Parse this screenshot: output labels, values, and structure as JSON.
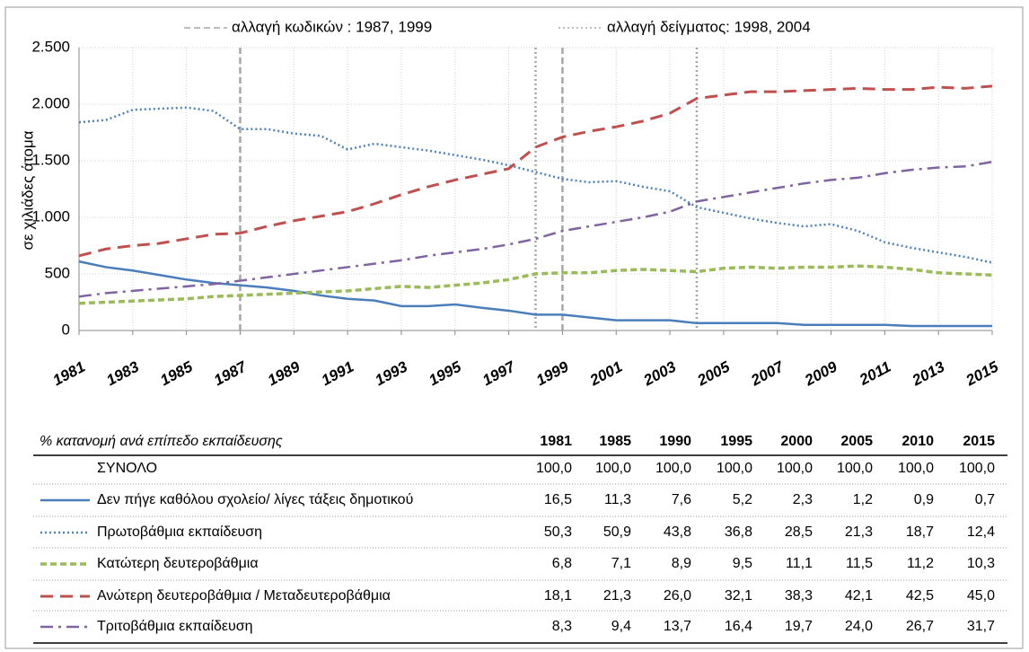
{
  "chart_data": {
    "type": "line",
    "y_label": "σε χιλιάδες άτομα",
    "x": [
      1981,
      1982,
      1983,
      1984,
      1985,
      1986,
      1987,
      1988,
      1989,
      1990,
      1991,
      1992,
      1993,
      1994,
      1995,
      1996,
      1997,
      1998,
      1999,
      2000,
      2001,
      2002,
      2003,
      2004,
      2005,
      2006,
      2007,
      2008,
      2009,
      2010,
      2011,
      2012,
      2013,
      2014,
      2015
    ],
    "xlim": [
      1981,
      2015
    ],
    "xticks": [
      1981,
      1983,
      1985,
      1987,
      1989,
      1991,
      1993,
      1995,
      1997,
      1999,
      2001,
      2003,
      2005,
      2007,
      2009,
      2011,
      2013,
      2015
    ],
    "ylim": [
      0,
      2500
    ],
    "yticks": [
      0,
      500,
      {
        "value": 1000,
        "label": "1.000"
      },
      {
        "value": 1500,
        "label": "1.500"
      },
      {
        "value": 2000,
        "label": "2.000"
      },
      {
        "value": 2500,
        "label": "2.500"
      }
    ],
    "grid": true,
    "reference_lines": [
      {
        "label": "αλλαγή κωδικών : 1987,  1999",
        "style": "dashed",
        "color": "#a6a6a6",
        "x": [
          1987,
          1999
        ]
      },
      {
        "label": "αλλαγή δείγματος: 1998,  2004",
        "style": "dotted",
        "color": "#a6a6a6",
        "x": [
          1998,
          2004
        ]
      }
    ],
    "series": [
      {
        "name": "Δεν πήγε καθόλου σχολείο/ λίγες τάξεις δημοτικού",
        "color": "#4a7ebb",
        "line_style": "solid",
        "values": [
          610,
          560,
          530,
          490,
          450,
          420,
          400,
          380,
          350,
          310,
          280,
          265,
          215,
          215,
          230,
          200,
          175,
          140,
          140,
          115,
          90,
          90,
          90,
          65,
          65,
          65,
          65,
          50,
          50,
          50,
          50,
          40,
          40,
          40,
          40
        ]
      },
      {
        "name": "Πρωτοβάθμια εκπαίδευση",
        "color": "#4f81bd",
        "line_style": "dotted",
        "values": [
          1840,
          1860,
          1950,
          1960,
          1970,
          1940,
          1780,
          1780,
          1740,
          1720,
          1600,
          1650,
          1620,
          1590,
          1550,
          1510,
          1460,
          1400,
          1340,
          1310,
          1320,
          1270,
          1230,
          1090,
          1040,
          990,
          950,
          920,
          940,
          880,
          780,
          730,
          690,
          650,
          600
        ]
      },
      {
        "name": "Κατώτερη δευτεροβάθμια",
        "color": "#9bbb59",
        "line_style": "dashed",
        "values": [
          240,
          250,
          260,
          270,
          280,
          300,
          310,
          320,
          330,
          340,
          350,
          370,
          390,
          380,
          400,
          420,
          450,
          500,
          510,
          510,
          530,
          540,
          530,
          520,
          550,
          560,
          550,
          560,
          560,
          570,
          560,
          540,
          510,
          500,
          490
        ]
      },
      {
        "name": "Ανώτερη δευτεροβάθμια / Μεταδευτεροβάθμια",
        "color": "#c0504d",
        "line_style": "long-dashed",
        "values": [
          660,
          720,
          750,
          770,
          810,
          850,
          860,
          920,
          970,
          1010,
          1050,
          1120,
          1200,
          1270,
          1330,
          1380,
          1430,
          1620,
          1710,
          1760,
          1800,
          1850,
          1920,
          2050,
          2080,
          2110,
          2110,
          2120,
          2130,
          2140,
          2130,
          2130,
          2150,
          2140,
          2160
        ]
      },
      {
        "name": "Τριτοβάθμια εκπαίδευση",
        "color": "#8064a2",
        "line_style": "dash-dot",
        "values": [
          300,
          330,
          350,
          370,
          390,
          410,
          440,
          470,
          500,
          530,
          560,
          590,
          620,
          660,
          690,
          720,
          760,
          810,
          880,
          920,
          960,
          1000,
          1050,
          1140,
          1180,
          1220,
          1260,
          1300,
          1330,
          1350,
          1390,
          1420,
          1440,
          1450,
          1490
        ]
      }
    ]
  },
  "table": {
    "title": "% κατανομή ανά επίπεδο εκπαίδευσης",
    "years": [
      "1981",
      "1985",
      "1990",
      "1995",
      "2000",
      "2005",
      "2010",
      "2015"
    ],
    "total_label": "ΣΥΝΟΛΟ",
    "total": [
      "100,0",
      "100,0",
      "100,0",
      "100,0",
      "100,0",
      "100,0",
      "100,0",
      "100,0"
    ],
    "rows": [
      [
        "16,5",
        "11,3",
        "7,6",
        "5,2",
        "2,3",
        "1,2",
        "0,9",
        "0,7"
      ],
      [
        "50,3",
        "50,9",
        "43,8",
        "36,8",
        "28,5",
        "21,3",
        "18,7",
        "12,4"
      ],
      [
        "6,8",
        "7,1",
        "8,9",
        "9,5",
        "11,1",
        "11,5",
        "11,2",
        "10,3"
      ],
      [
        "18,1",
        "21,3",
        "26,0",
        "32,1",
        "38,3",
        "42,1",
        "42,5",
        "45,0"
      ],
      [
        "8,3",
        "9,4",
        "13,7",
        "16,4",
        "19,7",
        "24,0",
        "26,7",
        "31,7"
      ]
    ]
  }
}
